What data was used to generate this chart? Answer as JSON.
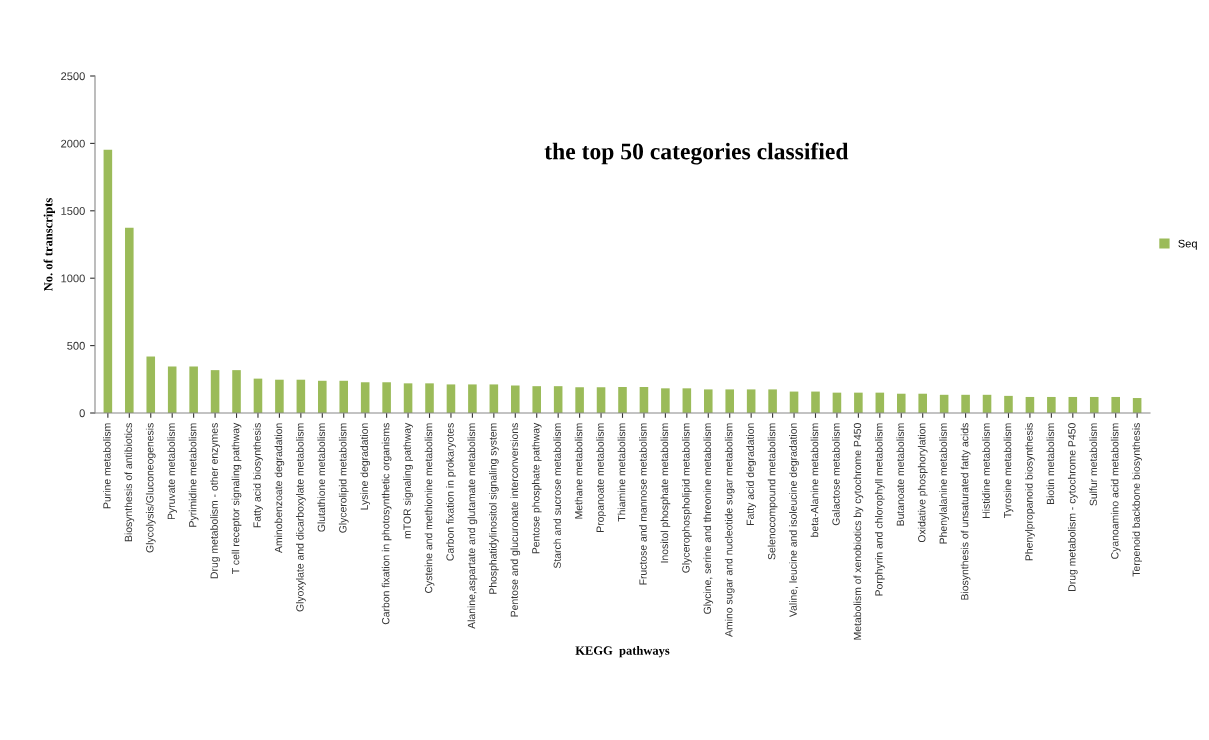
{
  "chart_data": {
    "type": "bar",
    "title": "the top 50 categories classified",
    "xlabel": "KEGG  pathways",
    "ylabel": "No. of transcripts",
    "categories": [
      "Purine metabolism",
      "Biosynthesis of antibiotics",
      "Glycolysis/Gluconeogenesis",
      "Pyruvate metabolism",
      "Pyrimidine metabolism",
      "Drug metabolism - other enzymes",
      "T cell receptor signaling pathway",
      "Fatty acid biosynthesis",
      "Aminobenzoate degradation",
      "Glyoxylate and dicarboxylate metabolism",
      "Glutathione metabolism",
      "Glycerolipid metabolism",
      "Lysine degradation",
      "Carbon fixation in photosynthetic organisms",
      "mTOR signaling pathway",
      "Cysteine and methionine metabolism",
      "Carbon fixation in prokaryotes",
      "Alanine,aspartate and glutamate metabolism",
      "Phosphatidylinositol signaling system",
      "Pentose and glucuronate interconversions",
      "Pentose phosphate pathway",
      "Starch and sucrose metabolism",
      "Methane metabolism",
      "Propanoate metabolism",
      "Thiamine metabolism",
      "Fructose and mannose metabolism",
      "Inositol phosphate metabolism",
      "Glycerophospholipid metabolism",
      "Glycine, serine and threonine metabolism",
      "Amino sugar and nucleotide sugar metabolism",
      "Fatty acid degradation",
      "Selenocompound metabolism",
      "Valine, leucine and isoleucine degradation",
      "beta-Alanine metabolism",
      "Galactose metabolism",
      "Metabolism of xenobiotics by cytochrome P450",
      "Porphyrin and chlorophyll metabolism",
      "Butanoate metabolism",
      "Oxidative phosphorylation",
      "Phenylalanine metabolism",
      "Biosynthesis of unsaturated fatty acids",
      "Histidine metabolism",
      "Tyrosine metabolism",
      "Phenylpropanoid biosynthesis",
      "Biotin metabolism",
      "Drug metabolism - cytochrome P450",
      "Sulfur metabolism",
      "Cyanoamino acid metabolism",
      "Terpenoid backbone biosynthesis"
    ],
    "series": [
      {
        "name": "Seq",
        "color": "#9bbb59",
        "values": [
          1952,
          1374,
          419,
          345,
          345,
          318,
          318,
          255,
          247,
          247,
          239,
          239,
          228,
          228,
          220,
          220,
          212,
          212,
          212,
          204,
          199,
          199,
          191,
          191,
          193,
          193,
          183,
          183,
          175,
          175,
          175,
          175,
          159,
          159,
          151,
          151,
          151,
          143,
          143,
          135,
          135,
          135,
          127,
          119,
          119,
          119,
          119,
          119,
          111
        ]
      }
    ],
    "ylim": [
      0,
      2500
    ],
    "yticks": [
      0,
      500,
      1000,
      1500,
      2000,
      2500
    ],
    "grid": false,
    "legend": "right"
  }
}
